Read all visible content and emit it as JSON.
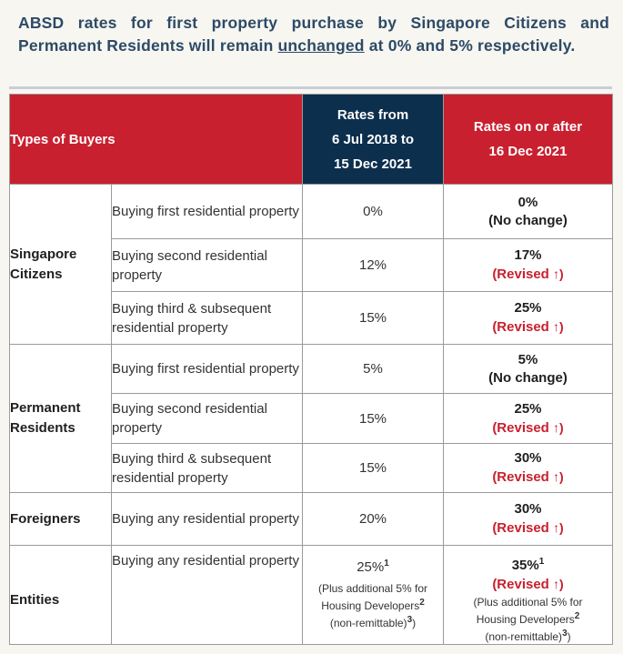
{
  "intro": {
    "part1": "ABSD rates for first property purchase by Singapore Citizens and Permanent Residents will remain ",
    "underlined": "unchanged",
    "part2": " at 0% and 5% respectively."
  },
  "table": {
    "headers": {
      "types": "Types of Buyers",
      "from_l1": "Rates from",
      "from_l2": "6 Jul 2018 to",
      "from_l3": "15 Dec 2021",
      "after_l1": "Rates on or after",
      "after_l2": "16 Dec 2021"
    },
    "groups": {
      "sc_l1": "Singapore",
      "sc_l2": "Citizens",
      "pr_l1": "Permanent",
      "pr_l2": "Residents",
      "fr": "Foreigners",
      "en": "Entities"
    },
    "rows": [
      {
        "desc": "Buying first residential property",
        "old": "0%",
        "new": "0%",
        "status": "(No change)"
      },
      {
        "desc": "Buying second residential property",
        "old": "12%",
        "new": "17%",
        "status": "(Revised"
      },
      {
        "desc": "Buying third & subsequent residential property",
        "old": "15%",
        "new": "25%",
        "status": "(Revised"
      },
      {
        "desc": "Buying first residential property",
        "old": "5%",
        "new": "5%",
        "status": "(No change)"
      },
      {
        "desc": "Buying second residential property",
        "old": "15%",
        "new": "25%",
        "status": "(Revised"
      },
      {
        "desc": "Buying third & subsequent residential property",
        "old": "15%",
        "new": "30%",
        "status": "(Revised"
      },
      {
        "desc": "Buying any residential property",
        "old": "20%",
        "new": "30%",
        "status": "(Revised"
      },
      {
        "desc": "Buying any residential property",
        "old": "25%",
        "new": "35%",
        "status": "(Revised"
      }
    ],
    "arrow": "↑)",
    "footnotes": {
      "one": "1",
      "two": "2",
      "three": "3"
    },
    "note": {
      "l1": "(Plus additional 5% for",
      "l2": "Housing Developers",
      "l3": "(non-remittable)",
      "close": ")"
    }
  }
}
